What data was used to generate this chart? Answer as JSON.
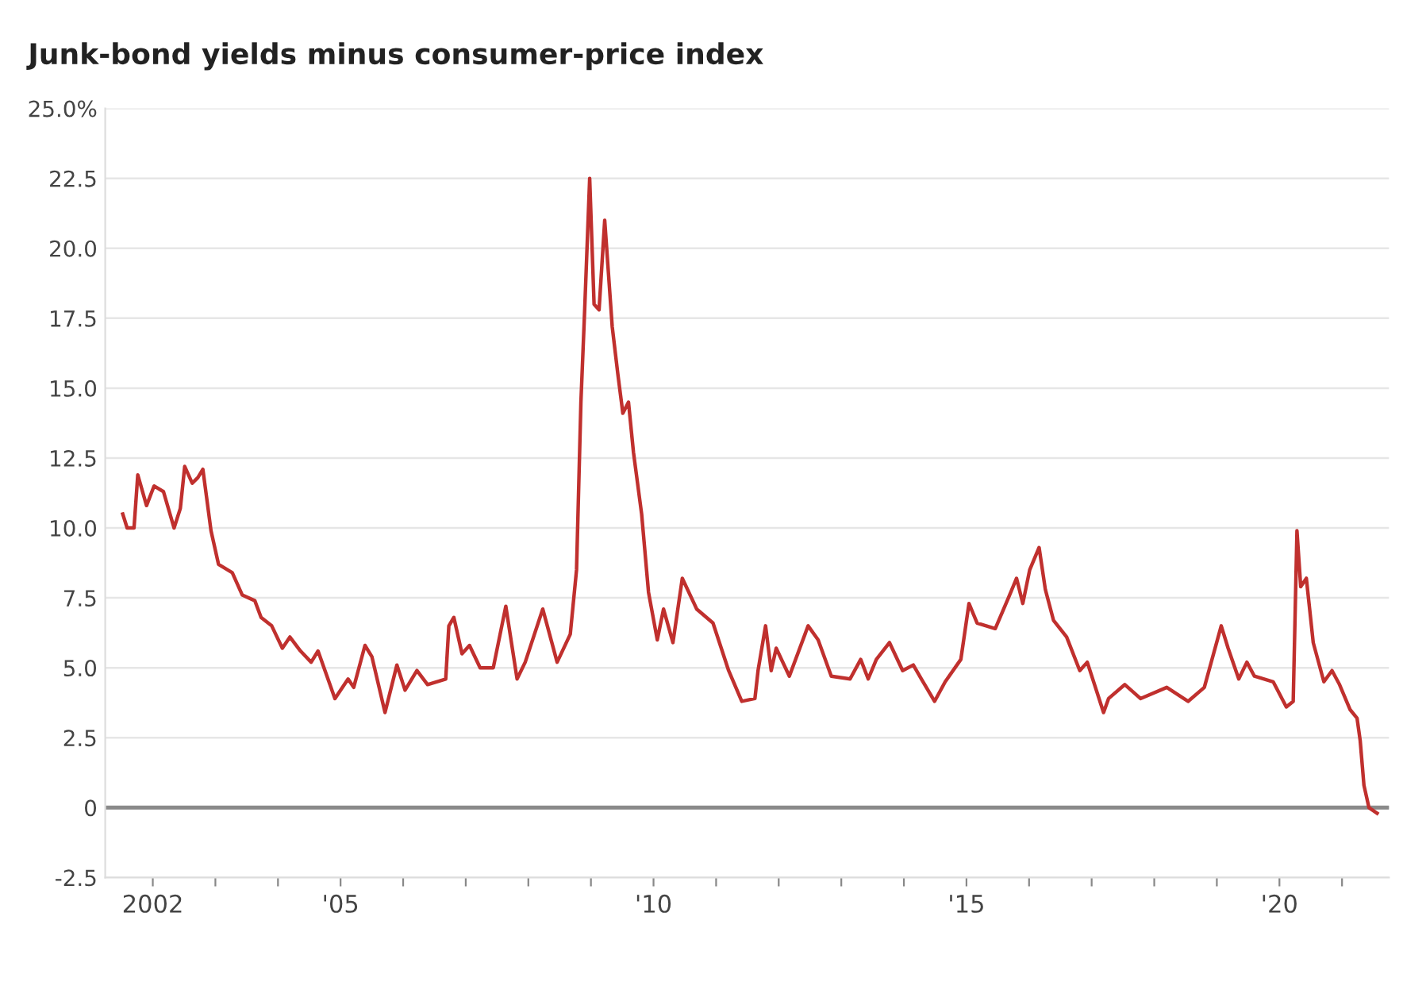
{
  "chart_data": {
    "type": "line",
    "title": "Junk-bond yields minus consumer-price index",
    "x": [
      2001.52,
      2001.59,
      2001.7,
      2001.76,
      2001.9,
      2002.02,
      2002.17,
      2002.34,
      2002.44,
      2002.51,
      2002.63,
      2002.72,
      2002.8,
      2002.93,
      2003.05,
      2003.27,
      2003.43,
      2003.63,
      2003.73,
      2003.9,
      2004.07,
      2004.19,
      2004.36,
      2004.53,
      2004.64,
      2004.91,
      2005.12,
      2005.21,
      2005.39,
      2005.5,
      2005.71,
      2005.9,
      2006.03,
      2006.22,
      2006.39,
      2006.68,
      2006.73,
      2006.81,
      2006.94,
      2007.06,
      2007.23,
      2007.44,
      2007.64,
      2007.82,
      2007.95,
      2008.23,
      2008.46,
      2008.67,
      2008.77,
      2008.84,
      2008.9,
      2008.98,
      2009.05,
      2009.13,
      2009.22,
      2009.34,
      2009.43,
      2009.51,
      2009.6,
      2009.68,
      2009.81,
      2009.92,
      2010.06,
      2010.16,
      2010.31,
      2010.46,
      2010.69,
      2010.95,
      2011.2,
      2011.41,
      2011.62,
      2011.67,
      2011.79,
      2011.88,
      2011.96,
      2012.17,
      2012.47,
      2012.63,
      2012.84,
      2013.14,
      2013.31,
      2013.43,
      2013.56,
      2013.77,
      2013.98,
      2014.15,
      2014.28,
      2014.49,
      2014.66,
      2014.91,
      2015.04,
      2015.17,
      2015.46,
      2015.67,
      2015.8,
      2015.9,
      2016.01,
      2016.16,
      2016.26,
      2016.39,
      2016.6,
      2016.81,
      2016.93,
      2017.19,
      2017.27,
      2017.53,
      2017.78,
      2018.2,
      2018.54,
      2018.8,
      2019.07,
      2019.18,
      2019.35,
      2019.48,
      2019.6,
      2019.9,
      2020.11,
      2020.22,
      2020.28,
      2020.34,
      2020.43,
      2020.54,
      2020.71,
      2020.84,
      2020.96,
      2021.13,
      2021.24,
      2021.29,
      2021.35,
      2021.43,
      2021.56
    ],
    "series": [
      {
        "color": "#c0302e",
        "values": [
          10.5,
          10.0,
          10.0,
          11.9,
          10.8,
          11.5,
          11.3,
          10.0,
          10.7,
          12.2,
          11.6,
          11.8,
          12.1,
          9.9,
          8.7,
          8.4,
          7.6,
          7.4,
          6.8,
          6.5,
          5.7,
          6.1,
          5.6,
          5.2,
          5.6,
          3.9,
          4.6,
          4.3,
          5.8,
          5.4,
          3.4,
          5.1,
          4.2,
          4.9,
          4.4,
          4.6,
          6.5,
          6.8,
          5.5,
          5.8,
          5.0,
          5.0,
          7.2,
          4.6,
          5.2,
          7.1,
          5.2,
          6.2,
          8.5,
          14.5,
          17.8,
          22.5,
          18.0,
          17.8,
          21.0,
          17.2,
          15.5,
          14.1,
          14.5,
          12.7,
          10.5,
          7.7,
          6.0,
          7.1,
          5.9,
          8.2,
          7.1,
          6.6,
          4.9,
          3.8,
          3.9,
          4.9,
          6.5,
          4.9,
          5.7,
          4.7,
          6.5,
          6.0,
          4.7,
          4.6,
          5.3,
          4.6,
          5.3,
          5.9,
          4.9,
          5.1,
          4.6,
          3.8,
          4.5,
          5.3,
          7.3,
          6.6,
          6.4,
          7.5,
          8.2,
          7.3,
          8.5,
          9.3,
          7.8,
          6.7,
          6.1,
          4.9,
          5.2,
          3.4,
          3.9,
          4.4,
          3.9,
          4.3,
          3.8,
          4.3,
          6.5,
          5.7,
          4.6,
          5.2,
          4.7,
          4.5,
          3.6,
          3.8,
          9.9,
          7.9,
          8.2,
          5.9,
          4.5,
          4.9,
          4.4,
          3.5,
          3.2,
          2.4,
          0.8,
          0.0,
          -0.2
        ]
      }
    ],
    "xlim": [
      2001.24,
      2021.75
    ],
    "ylim": [
      -2.5,
      25
    ],
    "xticks": [
      {
        "value": 2002,
        "label": "2002"
      },
      {
        "value": 2003,
        "label": null
      },
      {
        "value": 2004,
        "label": null
      },
      {
        "value": 2005,
        "label": "'05"
      },
      {
        "value": 2006,
        "label": null
      },
      {
        "value": 2007,
        "label": null
      },
      {
        "value": 2008,
        "label": null
      },
      {
        "value": 2009,
        "label": null
      },
      {
        "value": 2010,
        "label": "'10"
      },
      {
        "value": 2011,
        "label": null
      },
      {
        "value": 2012,
        "label": null
      },
      {
        "value": 2013,
        "label": null
      },
      {
        "value": 2014,
        "label": null
      },
      {
        "value": 2015,
        "label": "'15"
      },
      {
        "value": 2016,
        "label": null
      },
      {
        "value": 2017,
        "label": null
      },
      {
        "value": 2018,
        "label": null
      },
      {
        "value": 2019,
        "label": null
      },
      {
        "value": 2020,
        "label": "'20"
      },
      {
        "value": 2021,
        "label": null
      }
    ],
    "yticks": [
      {
        "value": -2.5,
        "label": "-2.5"
      },
      {
        "value": 0,
        "label": "0"
      },
      {
        "value": 2.5,
        "label": "2.5"
      },
      {
        "value": 5,
        "label": "5.0"
      },
      {
        "value": 7.5,
        "label": "7.5"
      },
      {
        "value": 10,
        "label": "10.0"
      },
      {
        "value": 12.5,
        "label": "12.5"
      },
      {
        "value": 15,
        "label": "15.0"
      },
      {
        "value": 17.5,
        "label": "17.5"
      },
      {
        "value": 20,
        "label": "20.0"
      },
      {
        "value": 22.5,
        "label": "22.5"
      },
      {
        "value": 25,
        "label": "25.0%"
      }
    ],
    "ref_lines": [
      {
        "axis": "y",
        "value": 0,
        "color": "#8a8a8a"
      }
    ],
    "grid": "y",
    "legend": false
  }
}
